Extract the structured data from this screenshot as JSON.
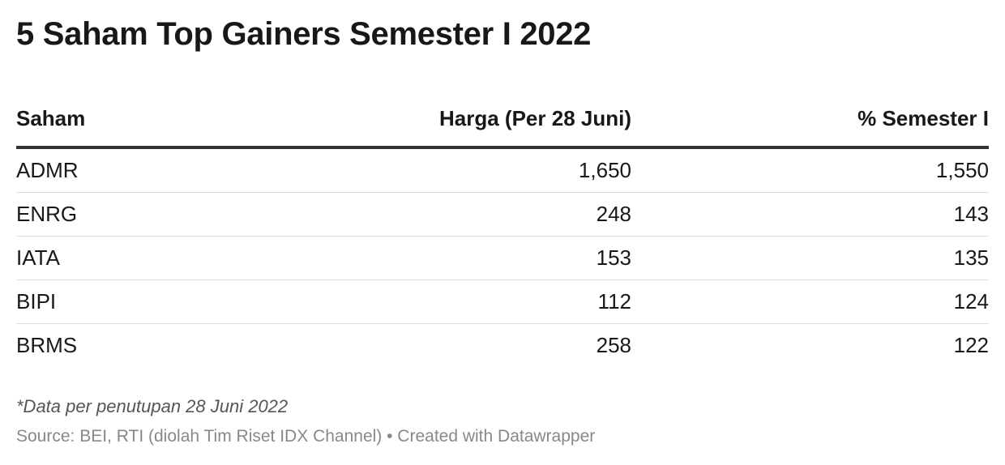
{
  "header": {
    "title": "5 Saham Top Gainers Semester I 2022"
  },
  "table": {
    "columns": [
      "Saham",
      "Harga (Per 28 Juni)",
      "% Semester I"
    ],
    "rows": [
      [
        "ADMR",
        "1,650",
        "1,550"
      ],
      [
        "ENRG",
        "248",
        "143"
      ],
      [
        "IATA",
        "153",
        "135"
      ],
      [
        "BIPI",
        "112",
        "124"
      ],
      [
        "BRMS",
        "258",
        "122"
      ]
    ]
  },
  "footer": {
    "note": "*Data per penutupan 28 Juni 2022",
    "source": "Source: BEI, RTI (diolah Tim Riset IDX Channel) • Created with Datawrapper"
  }
}
